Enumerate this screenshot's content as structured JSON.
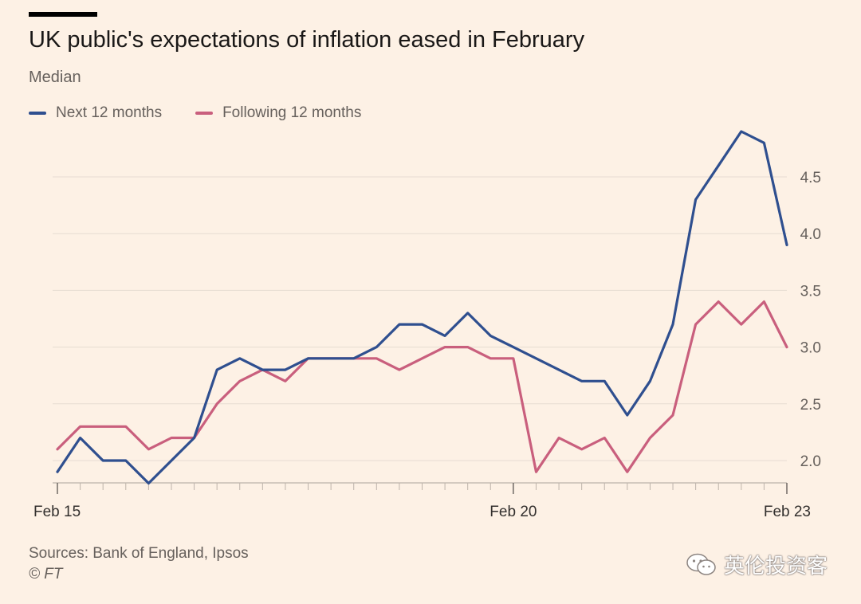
{
  "title": "UK public's expectations of inflation eased in February",
  "subtitle": "Median",
  "sources": "Sources: Bank of England, Ipsos",
  "credit": "© FT",
  "watermark": "英伦投资客",
  "colors": {
    "background": "#fdf1e5",
    "next_12": "#2f4f8f",
    "following_12": "#c95f7d",
    "grid": "#e6dcd2"
  },
  "chart_data": {
    "type": "line",
    "x_tick_labels": [
      "Feb 15",
      "Feb 20",
      "Feb 23"
    ],
    "x_tick_positions": [
      0,
      20,
      32
    ],
    "y_tick_labels": [
      "2.0",
      "2.5",
      "3.0",
      "3.5",
      "4.0",
      "4.5"
    ],
    "y_ticks": [
      2.0,
      2.5,
      3.0,
      3.5,
      4.0,
      4.5
    ],
    "ylim": [
      1.8,
      5.0
    ],
    "x_count": 33,
    "grid": true,
    "legend_position": "top-left",
    "series": [
      {
        "name": "Next 12 months",
        "color": "#2f4f8f",
        "values": [
          1.9,
          2.2,
          2.0,
          2.0,
          1.8,
          2.0,
          2.2,
          2.8,
          2.9,
          2.8,
          2.8,
          2.9,
          2.9,
          2.9,
          3.0,
          3.2,
          3.2,
          3.1,
          3.3,
          3.1,
          3.0,
          2.9,
          2.8,
          2.7,
          2.7,
          2.4,
          2.7,
          3.2,
          4.3,
          4.6,
          4.9,
          4.8,
          3.9
        ]
      },
      {
        "name": "Following 12 months",
        "color": "#c95f7d",
        "values": [
          2.1,
          2.3,
          2.3,
          2.3,
          2.1,
          2.2,
          2.2,
          2.5,
          2.7,
          2.8,
          2.7,
          2.9,
          2.9,
          2.9,
          2.9,
          2.8,
          2.9,
          3.0,
          3.0,
          2.9,
          2.9,
          1.9,
          2.2,
          2.1,
          2.2,
          1.9,
          2.2,
          2.4,
          3.2,
          3.4,
          3.2,
          3.4,
          3.0
        ]
      }
    ]
  }
}
